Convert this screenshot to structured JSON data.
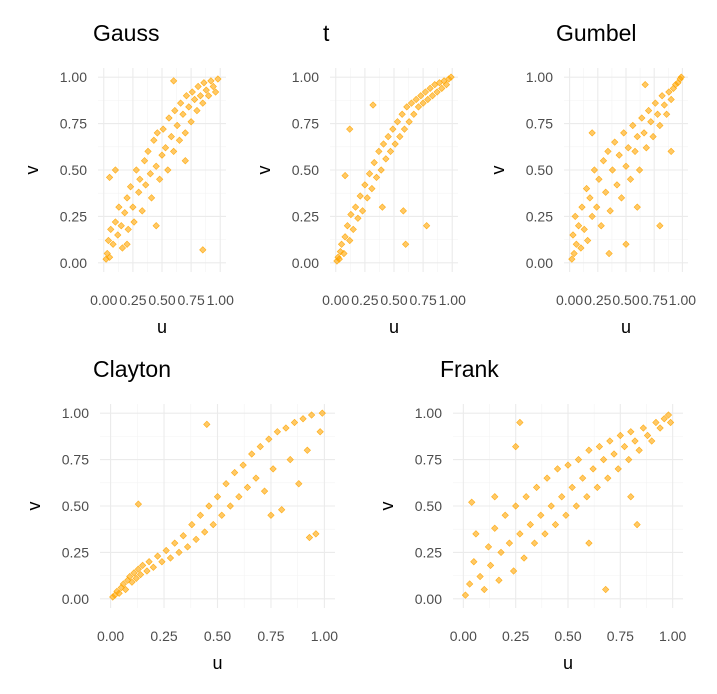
{
  "chart_data": [
    {
      "type": "scatter",
      "title": "Gauss",
      "xlabel": "u",
      "ylabel": "v",
      "xlim": [
        0,
        1
      ],
      "ylim": [
        0,
        1
      ],
      "xticks": [
        "0.00",
        "0.25",
        "0.50",
        "0.75",
        "1.00"
      ],
      "yticks": [
        "0.00",
        "0.25",
        "0.50",
        "0.75",
        "1.00"
      ],
      "grid": true,
      "color": "#FFA500",
      "points": [
        [
          0.02,
          0.02
        ],
        [
          0.03,
          0.05
        ],
        [
          0.05,
          0.03
        ],
        [
          0.04,
          0.12
        ],
        [
          0.06,
          0.18
        ],
        [
          0.08,
          0.1
        ],
        [
          0.1,
          0.22
        ],
        [
          0.12,
          0.15
        ],
        [
          0.13,
          0.3
        ],
        [
          0.15,
          0.2
        ],
        [
          0.16,
          0.08
        ],
        [
          0.18,
          0.27
        ],
        [
          0.2,
          0.35
        ],
        [
          0.21,
          0.18
        ],
        [
          0.23,
          0.41
        ],
        [
          0.25,
          0.3
        ],
        [
          0.26,
          0.22
        ],
        [
          0.28,
          0.5
        ],
        [
          0.3,
          0.38
        ],
        [
          0.31,
          0.45
        ],
        [
          0.33,
          0.28
        ],
        [
          0.35,
          0.55
        ],
        [
          0.36,
          0.42
        ],
        [
          0.38,
          0.6
        ],
        [
          0.4,
          0.48
        ],
        [
          0.41,
          0.35
        ],
        [
          0.43,
          0.66
        ],
        [
          0.45,
          0.52
        ],
        [
          0.46,
          0.7
        ],
        [
          0.48,
          0.45
        ],
        [
          0.5,
          0.58
        ],
        [
          0.51,
          0.72
        ],
        [
          0.53,
          0.62
        ],
        [
          0.55,
          0.5
        ],
        [
          0.56,
          0.78
        ],
        [
          0.58,
          0.68
        ],
        [
          0.6,
          0.6
        ],
        [
          0.61,
          0.82
        ],
        [
          0.63,
          0.74
        ],
        [
          0.65,
          0.66
        ],
        [
          0.66,
          0.86
        ],
        [
          0.68,
          0.8
        ],
        [
          0.7,
          0.7
        ],
        [
          0.71,
          0.9
        ],
        [
          0.73,
          0.84
        ],
        [
          0.75,
          0.76
        ],
        [
          0.76,
          0.92
        ],
        [
          0.78,
          0.88
        ],
        [
          0.8,
          0.82
        ],
        [
          0.81,
          0.95
        ],
        [
          0.83,
          0.9
        ],
        [
          0.85,
          0.86
        ],
        [
          0.86,
          0.97
        ],
        [
          0.88,
          0.93
        ],
        [
          0.9,
          0.9
        ],
        [
          0.92,
          0.98
        ],
        [
          0.94,
          0.95
        ],
        [
          0.96,
          0.92
        ],
        [
          0.98,
          0.99
        ],
        [
          0.1,
          0.5
        ],
        [
          0.05,
          0.46
        ],
        [
          0.7,
          0.55
        ],
        [
          0.85,
          0.07
        ],
        [
          0.6,
          0.98
        ],
        [
          0.2,
          0.1
        ],
        [
          0.45,
          0.2
        ]
      ]
    },
    {
      "type": "scatter",
      "title": "t",
      "xlabel": "u",
      "ylabel": "v",
      "xlim": [
        0,
        1
      ],
      "ylim": [
        0,
        1
      ],
      "xticks": [
        "0.00",
        "0.25",
        "0.50",
        "0.75",
        "1.00"
      ],
      "yticks": [
        "0.00",
        "0.25",
        "0.50",
        "0.75",
        "1.00"
      ],
      "grid": true,
      "color": "#FFA500",
      "points": [
        [
          0.01,
          0.01
        ],
        [
          0.02,
          0.03
        ],
        [
          0.03,
          0.02
        ],
        [
          0.04,
          0.06
        ],
        [
          0.05,
          0.1
        ],
        [
          0.07,
          0.05
        ],
        [
          0.08,
          0.14
        ],
        [
          0.1,
          0.2
        ],
        [
          0.12,
          0.12
        ],
        [
          0.13,
          0.26
        ],
        [
          0.15,
          0.18
        ],
        [
          0.17,
          0.3
        ],
        [
          0.19,
          0.24
        ],
        [
          0.21,
          0.36
        ],
        [
          0.23,
          0.28
        ],
        [
          0.25,
          0.42
        ],
        [
          0.27,
          0.35
        ],
        [
          0.29,
          0.48
        ],
        [
          0.31,
          0.4
        ],
        [
          0.33,
          0.54
        ],
        [
          0.35,
          0.46
        ],
        [
          0.37,
          0.6
        ],
        [
          0.39,
          0.5
        ],
        [
          0.41,
          0.64
        ],
        [
          0.43,
          0.56
        ],
        [
          0.45,
          0.68
        ],
        [
          0.47,
          0.6
        ],
        [
          0.49,
          0.72
        ],
        [
          0.51,
          0.64
        ],
        [
          0.53,
          0.76
        ],
        [
          0.55,
          0.68
        ],
        [
          0.57,
          0.8
        ],
        [
          0.59,
          0.72
        ],
        [
          0.61,
          0.84
        ],
        [
          0.63,
          0.76
        ],
        [
          0.65,
          0.86
        ],
        [
          0.67,
          0.8
        ],
        [
          0.69,
          0.88
        ],
        [
          0.71,
          0.84
        ],
        [
          0.73,
          0.9
        ],
        [
          0.75,
          0.86
        ],
        [
          0.77,
          0.92
        ],
        [
          0.79,
          0.88
        ],
        [
          0.81,
          0.94
        ],
        [
          0.83,
          0.9
        ],
        [
          0.85,
          0.96
        ],
        [
          0.87,
          0.92
        ],
        [
          0.89,
          0.97
        ],
        [
          0.91,
          0.94
        ],
        [
          0.93,
          0.98
        ],
        [
          0.95,
          0.96
        ],
        [
          0.97,
          0.99
        ],
        [
          0.99,
          1.0
        ],
        [
          0.12,
          0.72
        ],
        [
          0.08,
          0.47
        ],
        [
          0.58,
          0.28
        ],
        [
          0.78,
          0.2
        ],
        [
          0.32,
          0.85
        ],
        [
          0.6,
          0.1
        ],
        [
          0.4,
          0.3
        ]
      ]
    },
    {
      "type": "scatter",
      "title": "Gumbel",
      "xlabel": "u",
      "ylabel": "v",
      "xlim": [
        0,
        1
      ],
      "ylim": [
        0,
        1
      ],
      "xticks": [
        "0.00",
        "0.25",
        "0.50",
        "0.75",
        "1.00"
      ],
      "yticks": [
        "0.00",
        "0.25",
        "0.50",
        "0.75",
        "1.00"
      ],
      "grid": true,
      "color": "#FFA500",
      "points": [
        [
          0.02,
          0.02
        ],
        [
          0.03,
          0.15
        ],
        [
          0.04,
          0.05
        ],
        [
          0.05,
          0.25
        ],
        [
          0.06,
          0.1
        ],
        [
          0.08,
          0.2
        ],
        [
          0.1,
          0.08
        ],
        [
          0.11,
          0.3
        ],
        [
          0.13,
          0.18
        ],
        [
          0.15,
          0.4
        ],
        [
          0.16,
          0.12
        ],
        [
          0.18,
          0.35
        ],
        [
          0.2,
          0.25
        ],
        [
          0.22,
          0.5
        ],
        [
          0.24,
          0.3
        ],
        [
          0.26,
          0.45
        ],
        [
          0.28,
          0.2
        ],
        [
          0.3,
          0.55
        ],
        [
          0.32,
          0.38
        ],
        [
          0.34,
          0.6
        ],
        [
          0.36,
          0.28
        ],
        [
          0.38,
          0.5
        ],
        [
          0.4,
          0.65
        ],
        [
          0.42,
          0.42
        ],
        [
          0.44,
          0.58
        ],
        [
          0.46,
          0.35
        ],
        [
          0.48,
          0.7
        ],
        [
          0.5,
          0.52
        ],
        [
          0.52,
          0.62
        ],
        [
          0.54,
          0.45
        ],
        [
          0.56,
          0.74
        ],
        [
          0.58,
          0.6
        ],
        [
          0.6,
          0.68
        ],
        [
          0.62,
          0.5
        ],
        [
          0.64,
          0.78
        ],
        [
          0.66,
          0.7
        ],
        [
          0.68,
          0.62
        ],
        [
          0.7,
          0.82
        ],
        [
          0.72,
          0.76
        ],
        [
          0.74,
          0.68
        ],
        [
          0.76,
          0.86
        ],
        [
          0.78,
          0.8
        ],
        [
          0.8,
          0.74
        ],
        [
          0.82,
          0.9
        ],
        [
          0.84,
          0.85
        ],
        [
          0.86,
          0.8
        ],
        [
          0.88,
          0.92
        ],
        [
          0.9,
          0.88
        ],
        [
          0.92,
          0.94
        ],
        [
          0.94,
          0.96
        ],
        [
          0.96,
          0.97
        ],
        [
          0.98,
          0.99
        ],
        [
          0.99,
          1.0
        ],
        [
          0.9,
          0.6
        ],
        [
          0.8,
          0.2
        ],
        [
          0.5,
          0.1
        ],
        [
          0.67,
          0.96
        ],
        [
          0.2,
          0.7
        ],
        [
          0.35,
          0.05
        ],
        [
          0.6,
          0.3
        ]
      ]
    },
    {
      "type": "scatter",
      "title": "Clayton",
      "xlabel": "u",
      "ylabel": "v",
      "xlim": [
        0,
        1
      ],
      "ylim": [
        0,
        1
      ],
      "xticks": [
        "0.00",
        "0.25",
        "0.50",
        "0.75",
        "1.00"
      ],
      "yticks": [
        "0.00",
        "0.25",
        "0.50",
        "0.75",
        "1.00"
      ],
      "grid": true,
      "color": "#FFA500",
      "points": [
        [
          0.01,
          0.01
        ],
        [
          0.02,
          0.02
        ],
        [
          0.03,
          0.04
        ],
        [
          0.04,
          0.03
        ],
        [
          0.05,
          0.06
        ],
        [
          0.06,
          0.08
        ],
        [
          0.07,
          0.05
        ],
        [
          0.08,
          0.1
        ],
        [
          0.09,
          0.12
        ],
        [
          0.1,
          0.09
        ],
        [
          0.11,
          0.14
        ],
        [
          0.12,
          0.11
        ],
        [
          0.13,
          0.16
        ],
        [
          0.14,
          0.13
        ],
        [
          0.15,
          0.18
        ],
        [
          0.17,
          0.15
        ],
        [
          0.18,
          0.2
        ],
        [
          0.2,
          0.17
        ],
        [
          0.22,
          0.23
        ],
        [
          0.24,
          0.2
        ],
        [
          0.26,
          0.26
        ],
        [
          0.28,
          0.22
        ],
        [
          0.3,
          0.3
        ],
        [
          0.32,
          0.25
        ],
        [
          0.34,
          0.34
        ],
        [
          0.36,
          0.28
        ],
        [
          0.38,
          0.4
        ],
        [
          0.4,
          0.32
        ],
        [
          0.42,
          0.45
        ],
        [
          0.44,
          0.36
        ],
        [
          0.46,
          0.5
        ],
        [
          0.48,
          0.4
        ],
        [
          0.5,
          0.55
        ],
        [
          0.52,
          0.45
        ],
        [
          0.54,
          0.62
        ],
        [
          0.56,
          0.5
        ],
        [
          0.58,
          0.68
        ],
        [
          0.6,
          0.55
        ],
        [
          0.62,
          0.72
        ],
        [
          0.64,
          0.6
        ],
        [
          0.66,
          0.78
        ],
        [
          0.68,
          0.65
        ],
        [
          0.7,
          0.82
        ],
        [
          0.72,
          0.58
        ],
        [
          0.74,
          0.86
        ],
        [
          0.76,
          0.7
        ],
        [
          0.78,
          0.9
        ],
        [
          0.8,
          0.48
        ],
        [
          0.82,
          0.92
        ],
        [
          0.84,
          0.75
        ],
        [
          0.86,
          0.95
        ],
        [
          0.88,
          0.62
        ],
        [
          0.9,
          0.97
        ],
        [
          0.92,
          0.8
        ],
        [
          0.94,
          0.99
        ],
        [
          0.96,
          0.35
        ],
        [
          0.98,
          0.9
        ],
        [
          0.99,
          1.0
        ],
        [
          0.13,
          0.51
        ],
        [
          0.45,
          0.94
        ],
        [
          0.93,
          0.33
        ],
        [
          0.75,
          0.45
        ]
      ]
    },
    {
      "type": "scatter",
      "title": "Frank",
      "xlabel": "u",
      "ylabel": "v",
      "xlim": [
        0,
        1
      ],
      "ylim": [
        0,
        1
      ],
      "xticks": [
        "0.00",
        "0.25",
        "0.50",
        "0.75",
        "1.00"
      ],
      "yticks": [
        "0.00",
        "0.25",
        "0.50",
        "0.75",
        "1.00"
      ],
      "grid": true,
      "color": "#FFA500",
      "points": [
        [
          0.01,
          0.02
        ],
        [
          0.03,
          0.08
        ],
        [
          0.05,
          0.2
        ],
        [
          0.06,
          0.35
        ],
        [
          0.08,
          0.12
        ],
        [
          0.1,
          0.05
        ],
        [
          0.12,
          0.28
        ],
        [
          0.13,
          0.18
        ],
        [
          0.15,
          0.38
        ],
        [
          0.17,
          0.1
        ],
        [
          0.18,
          0.25
        ],
        [
          0.2,
          0.45
        ],
        [
          0.22,
          0.3
        ],
        [
          0.24,
          0.15
        ],
        [
          0.25,
          0.5
        ],
        [
          0.27,
          0.35
        ],
        [
          0.29,
          0.22
        ],
        [
          0.3,
          0.55
        ],
        [
          0.32,
          0.4
        ],
        [
          0.34,
          0.3
        ],
        [
          0.35,
          0.6
        ],
        [
          0.37,
          0.45
        ],
        [
          0.39,
          0.35
        ],
        [
          0.4,
          0.65
        ],
        [
          0.42,
          0.5
        ],
        [
          0.44,
          0.4
        ],
        [
          0.45,
          0.7
        ],
        [
          0.47,
          0.55
        ],
        [
          0.49,
          0.45
        ],
        [
          0.5,
          0.72
        ],
        [
          0.52,
          0.6
        ],
        [
          0.54,
          0.5
        ],
        [
          0.55,
          0.75
        ],
        [
          0.57,
          0.65
        ],
        [
          0.59,
          0.55
        ],
        [
          0.6,
          0.8
        ],
        [
          0.62,
          0.7
        ],
        [
          0.64,
          0.6
        ],
        [
          0.65,
          0.82
        ],
        [
          0.67,
          0.75
        ],
        [
          0.69,
          0.65
        ],
        [
          0.7,
          0.85
        ],
        [
          0.72,
          0.78
        ],
        [
          0.74,
          0.7
        ],
        [
          0.75,
          0.88
        ],
        [
          0.77,
          0.82
        ],
        [
          0.79,
          0.75
        ],
        [
          0.8,
          0.9
        ],
        [
          0.82,
          0.85
        ],
        [
          0.84,
          0.8
        ],
        [
          0.86,
          0.92
        ],
        [
          0.88,
          0.88
        ],
        [
          0.9,
          0.85
        ],
        [
          0.92,
          0.95
        ],
        [
          0.94,
          0.92
        ],
        [
          0.96,
          0.97
        ],
        [
          0.98,
          0.99
        ],
        [
          0.99,
          0.95
        ],
        [
          0.27,
          0.95
        ],
        [
          0.25,
          0.82
        ],
        [
          0.04,
          0.52
        ],
        [
          0.68,
          0.05
        ],
        [
          0.83,
          0.4
        ],
        [
          0.6,
          0.3
        ],
        [
          0.8,
          0.55
        ],
        [
          0.15,
          0.55
        ]
      ]
    }
  ]
}
